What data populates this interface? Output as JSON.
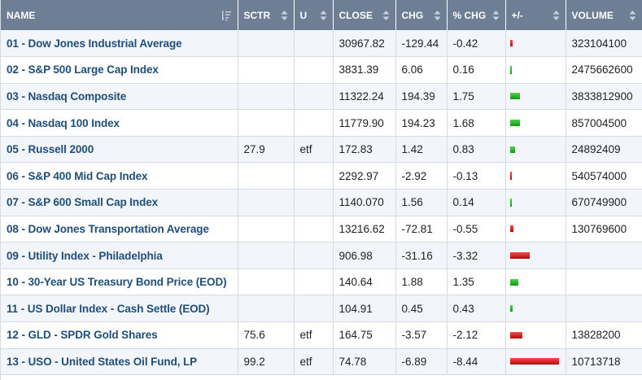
{
  "columns": [
    {
      "key": "name",
      "label": "NAME",
      "icon": "sort-desc-icon"
    },
    {
      "key": "sctr",
      "label": "SCTR",
      "icon": "sort-icon"
    },
    {
      "key": "u",
      "label": "U",
      "icon": "sort-icon"
    },
    {
      "key": "close",
      "label": "CLOSE",
      "icon": "sort-icon"
    },
    {
      "key": "chg",
      "label": "CHG",
      "icon": "sort-icon"
    },
    {
      "key": "pct_chg",
      "label": "% CHG",
      "icon": "sort-icon"
    },
    {
      "key": "bar",
      "label": "+/-",
      "icon": "sort-icon"
    },
    {
      "key": "volume",
      "label": "VOLUME",
      "icon": "sort-icon"
    }
  ],
  "colors": {
    "header_bg": "#6e7e95",
    "name_link": "#1f4e79",
    "up_bar": "#11a011",
    "down_bar": "#cc1111",
    "row_alt": "#f2f5f9"
  },
  "rows": [
    {
      "name": "01 - Dow Jones Industrial Average",
      "sctr": "",
      "u": "",
      "close": "30967.82",
      "chg": "-129.44",
      "pct_chg": "-0.42",
      "pct_value": -0.42,
      "volume": "323104100"
    },
    {
      "name": "02 - S&P 500 Large Cap Index",
      "sctr": "",
      "u": "",
      "close": "3831.39",
      "chg": "6.06",
      "pct_chg": "0.16",
      "pct_value": 0.16,
      "volume": "2475662600"
    },
    {
      "name": "03 - Nasdaq Composite",
      "sctr": "",
      "u": "",
      "close": "11322.24",
      "chg": "194.39",
      "pct_chg": "1.75",
      "pct_value": 1.75,
      "volume": "3833812900"
    },
    {
      "name": "04 - Nasdaq 100 Index",
      "sctr": "",
      "u": "",
      "close": "11779.90",
      "chg": "194.23",
      "pct_chg": "1.68",
      "pct_value": 1.68,
      "volume": "857004500"
    },
    {
      "name": "05 - Russell 2000",
      "sctr": "27.9",
      "u": "etf",
      "close": "172.83",
      "chg": "1.42",
      "pct_chg": "0.83",
      "pct_value": 0.83,
      "volume": "24892409"
    },
    {
      "name": "06 - S&P 400 Mid Cap Index",
      "sctr": "",
      "u": "",
      "close": "2292.97",
      "chg": "-2.92",
      "pct_chg": "-0.13",
      "pct_value": -0.13,
      "volume": "540574000"
    },
    {
      "name": "07 - S&P 600 Small Cap Index",
      "sctr": "",
      "u": "",
      "close": "1140.070",
      "chg": "1.56",
      "pct_chg": "0.14",
      "pct_value": 0.14,
      "volume": "670749900"
    },
    {
      "name": "08 - Dow Jones Transportation Average",
      "sctr": "",
      "u": "",
      "close": "13216.62",
      "chg": "-72.81",
      "pct_chg": "-0.55",
      "pct_value": -0.55,
      "volume": "130769600"
    },
    {
      "name": "09 - Utility Index - Philadelphia",
      "sctr": "",
      "u": "",
      "close": "906.98",
      "chg": "-31.16",
      "pct_chg": "-3.32",
      "pct_value": -3.32,
      "volume": ""
    },
    {
      "name": "10 - 30-Year US Treasury Bond Price (EOD)",
      "sctr": "",
      "u": "",
      "close": "140.64",
      "chg": "1.88",
      "pct_chg": "1.35",
      "pct_value": 1.35,
      "volume": ""
    },
    {
      "name": "11 - US Dollar Index - Cash Settle (EOD)",
      "sctr": "",
      "u": "",
      "close": "104.91",
      "chg": "0.45",
      "pct_chg": "0.43",
      "pct_value": 0.43,
      "volume": ""
    },
    {
      "name": "12 - GLD - SPDR Gold Shares",
      "sctr": "75.6",
      "u": "etf",
      "close": "164.75",
      "chg": "-3.57",
      "pct_chg": "-2.12",
      "pct_value": -2.12,
      "volume": "13828200"
    },
    {
      "name": "13 - USO - United States Oil Fund, LP",
      "sctr": "99.2",
      "u": "etf",
      "close": "74.78",
      "chg": "-6.89",
      "pct_chg": "-8.44",
      "pct_value": -8.44,
      "volume": "10713718"
    }
  ]
}
